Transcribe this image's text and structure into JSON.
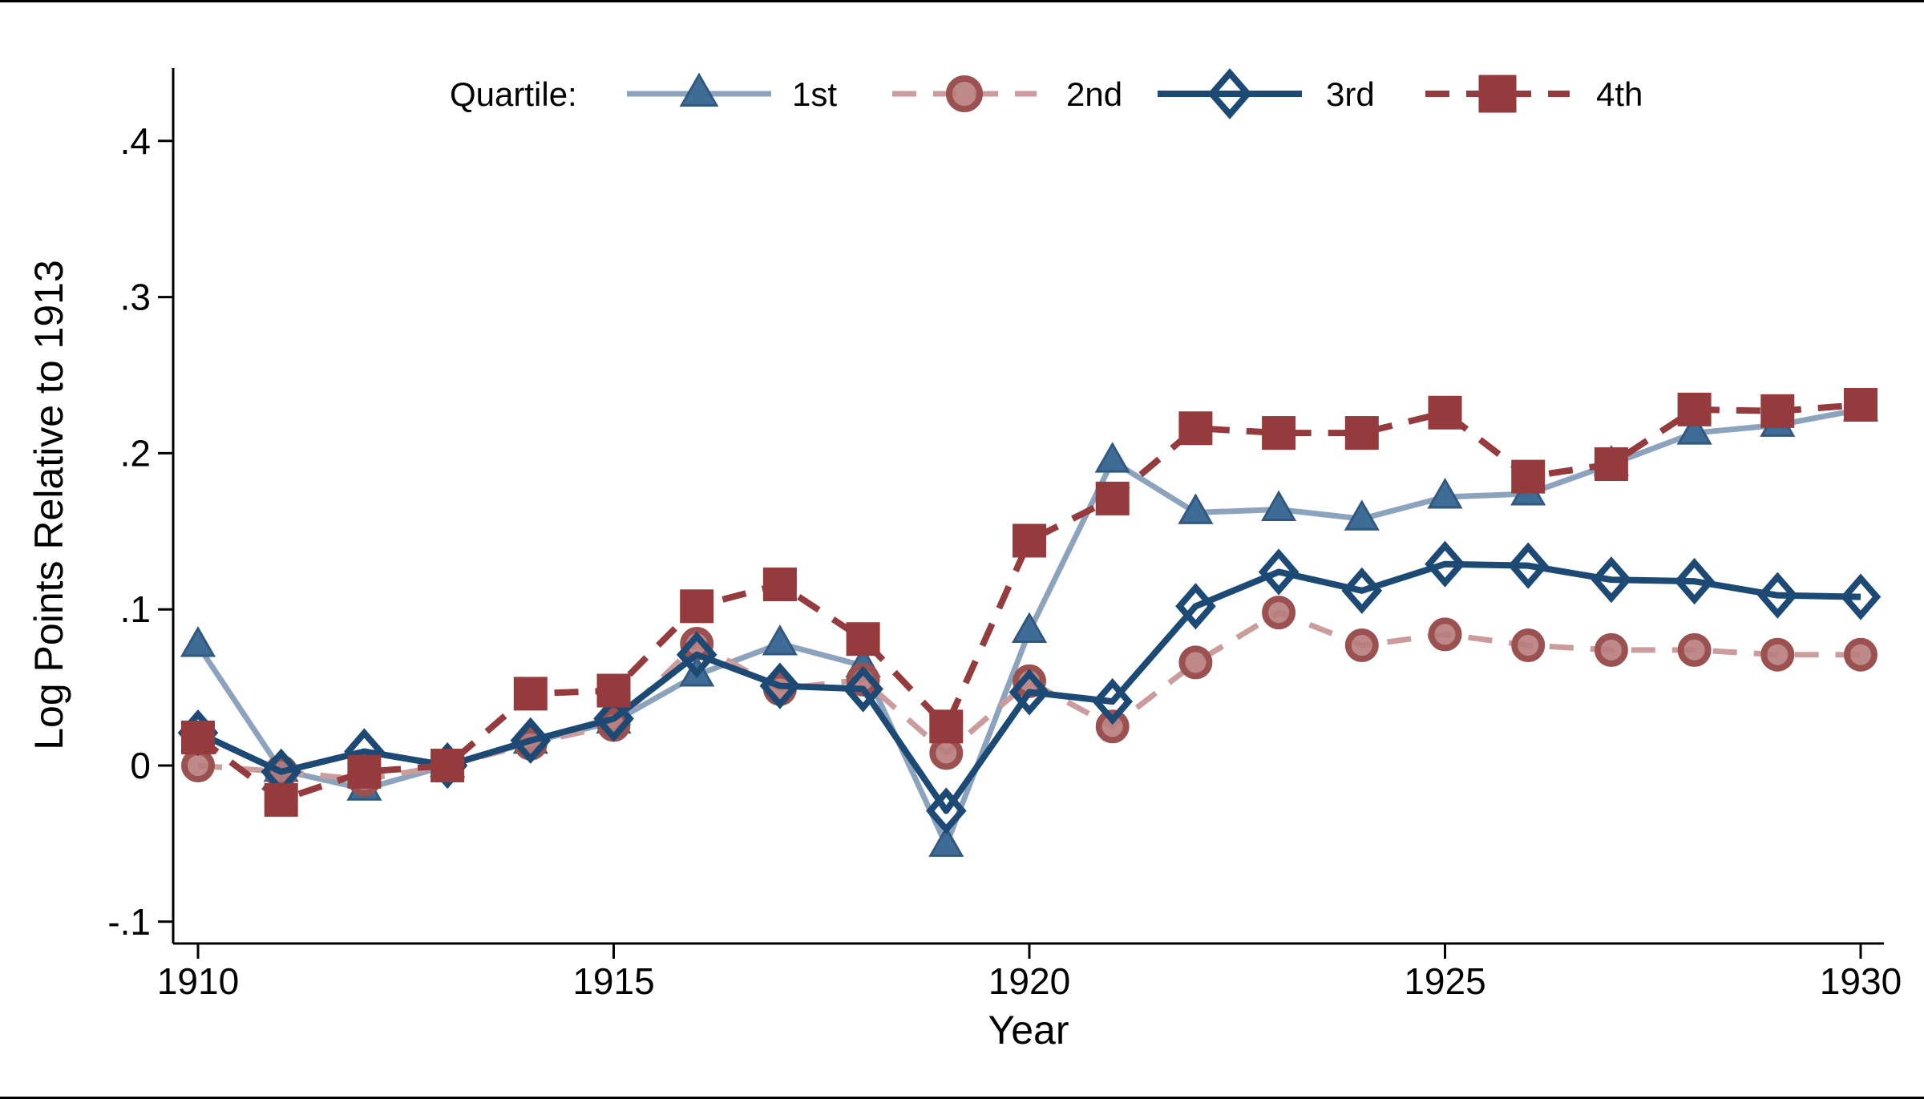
{
  "figure": {
    "y_axis_title": "Log Points Relative to 1913",
    "x_axis_title": "Year",
    "legend_title": "Quartile:",
    "background_color": "#ffffff",
    "frame_color": "#000000",
    "axis_color": "#000000"
  },
  "chart_data": {
    "type": "line",
    "title": "",
    "xlabel": "Year",
    "ylabel": "Log Points Relative to 1913",
    "grid": false,
    "legend_position": "top-center-inside",
    "xlim": [
      1909.7,
      1930.3
    ],
    "ylim": [
      -0.13,
      0.447
    ],
    "x_ticks": [
      {
        "label": "1910",
        "value": 1910
      },
      {
        "label": "1915",
        "value": 1915
      },
      {
        "label": "1920",
        "value": 1920
      },
      {
        "label": "1925",
        "value": 1925
      },
      {
        "label": "1930",
        "value": 1930
      }
    ],
    "y_ticks": [
      {
        "label": ".4",
        "value": 0.4
      },
      {
        "label": ".3",
        "value": 0.3
      },
      {
        "label": ".2",
        "value": 0.2
      },
      {
        "label": ".1",
        "value": 0.1
      },
      {
        "label": "0",
        "value": 0.0
      },
      {
        "label": "-.1",
        "value": -0.1
      }
    ],
    "x": [
      1910,
      1911,
      1912,
      1913,
      1914,
      1915,
      1916,
      1917,
      1918,
      1919,
      1920,
      1921,
      1922,
      1923,
      1924,
      1925,
      1926,
      1927,
      1928,
      1929,
      1930
    ],
    "series": [
      {
        "name": "1st",
        "marker": "triangle",
        "marker_icon": "triangle-marker-icon",
        "line_style": "solid",
        "line_color": "#8CA3BE",
        "marker_color": "#3E6C96",
        "marker_edge_color": "#31597F",
        "values": [
          0.077,
          -0.003,
          -0.015,
          0.0,
          0.015,
          0.028,
          0.058,
          0.078,
          0.064,
          -0.051,
          0.086,
          0.195,
          0.162,
          0.164,
          0.158,
          0.172,
          0.174,
          0.193,
          0.213,
          0.218,
          0.228
        ]
      },
      {
        "name": "2nd",
        "marker": "circle",
        "marker_icon": "circle-marker-icon",
        "line_style": "dashed",
        "line_color": "#CC9C9C",
        "marker_color": "#B97C7C",
        "marker_edge_color": "#9C5151",
        "values": [
          0.0,
          -0.004,
          -0.009,
          0.0,
          0.014,
          0.026,
          0.078,
          0.049,
          0.055,
          0.008,
          0.054,
          0.025,
          0.066,
          0.098,
          0.077,
          0.084,
          0.077,
          0.074,
          0.074,
          0.071,
          0.071
        ]
      },
      {
        "name": "3rd",
        "marker": "diamond-hollow",
        "marker_icon": "diamond-marker-icon",
        "line_style": "solid",
        "line_color": "#1C4A74",
        "marker_color": "none",
        "marker_edge_color": "#1C4A74",
        "values": [
          0.021,
          -0.004,
          0.009,
          0.0,
          0.016,
          0.03,
          0.071,
          0.051,
          0.049,
          -0.029,
          0.047,
          0.041,
          0.102,
          0.124,
          0.112,
          0.129,
          0.128,
          0.119,
          0.118,
          0.109,
          0.108
        ]
      },
      {
        "name": "4th",
        "marker": "square",
        "marker_icon": "square-marker-icon",
        "line_style": "dashed",
        "line_color": "#953A3D",
        "marker_color": "#953A3D",
        "marker_edge_color": "#953A3D",
        "values": [
          0.018,
          -0.022,
          -0.004,
          0.0,
          0.046,
          0.048,
          0.102,
          0.116,
          0.081,
          0.025,
          0.144,
          0.171,
          0.216,
          0.213,
          0.213,
          0.226,
          0.185,
          0.193,
          0.228,
          0.227,
          0.231
        ]
      }
    ]
  }
}
